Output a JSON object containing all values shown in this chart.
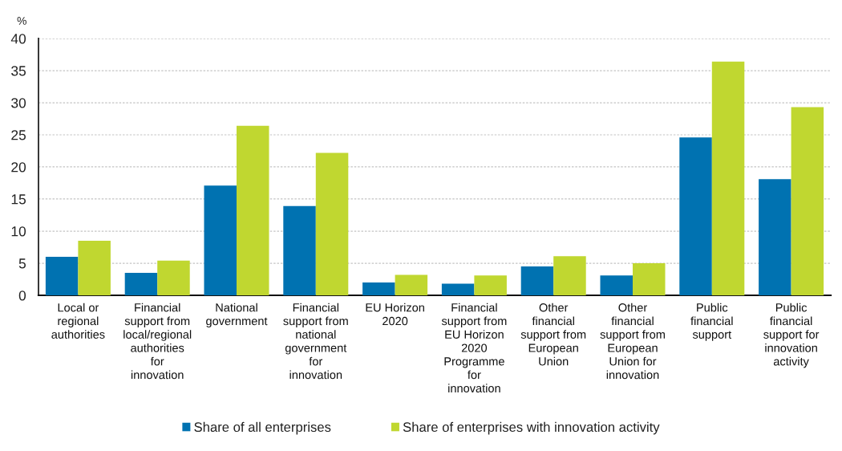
{
  "chart_data": {
    "type": "bar",
    "ylabel": "%",
    "categories": [
      "Local or\nregional\nauthorities",
      "Financial\nsupport from\nlocal/regional\nauthorities\nfor\ninnovation",
      "National\ngovernment",
      "Financial\nsupport from\nnational\ngovernment\nfor\ninnovation",
      "EU Horizon\n2020",
      "Financial\nsupport from\nEU Horizon\n2020\nProgramme\nfor\ninnovation",
      "Other\nfinancial\nsupport from\nEuropean\nUnion",
      "Other\nfinancial\nsupport from\nEuropean\nUnion for\ninnovation",
      "Public\nfinancial\nsupport",
      "Public\nfinancial\nsupport for\ninnovation\nactivity"
    ],
    "series": [
      {
        "name": "Share of all enterprises",
        "color": "#0072b1",
        "values": [
          6.0,
          3.5,
          17.1,
          13.9,
          2.0,
          1.8,
          4.5,
          3.1,
          24.6,
          18.1
        ]
      },
      {
        "name": "Share of enterprises with innovation activity",
        "color": "#c0d730",
        "values": [
          8.5,
          5.4,
          26.4,
          22.2,
          3.2,
          3.1,
          6.1,
          5.0,
          36.4,
          29.3
        ]
      }
    ],
    "ylim": [
      0,
      40
    ],
    "yticks": [
      0,
      5,
      10,
      15,
      20,
      25,
      30,
      35,
      40
    ],
    "grid": "y",
    "legend": "bottom"
  }
}
